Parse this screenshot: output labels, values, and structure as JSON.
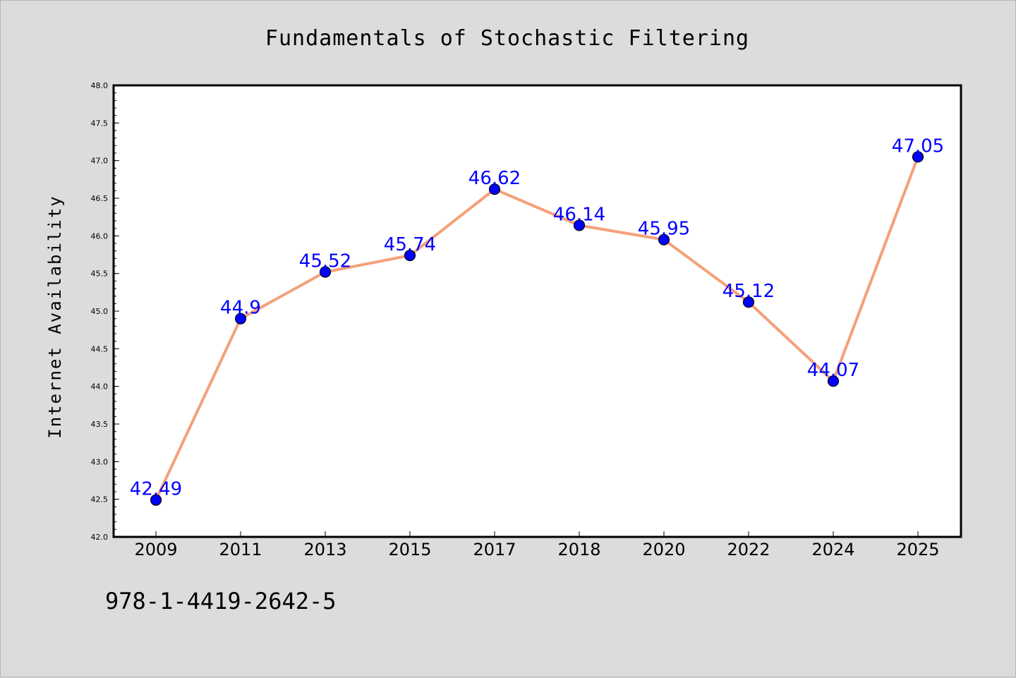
{
  "chart_data": {
    "type": "line",
    "title": "Fundamentals of Stochastic Filtering",
    "xlabel": "",
    "ylabel": "Internet Availability",
    "categories": [
      "2009",
      "2011",
      "2013",
      "2015",
      "2017",
      "2018",
      "2020",
      "2022",
      "2024",
      "2025"
    ],
    "series": [
      {
        "values": [
          42.49,
          44.9,
          45.52,
          45.74,
          46.62,
          46.14,
          45.95,
          45.12,
          44.07,
          47.05
        ],
        "labels": [
          "42.49",
          "44.9",
          "45.52",
          "45.74",
          "46.62",
          "46.14",
          "45.95",
          "45.12",
          "44.07",
          "47.05"
        ]
      }
    ],
    "ylim": [
      42.0,
      48.0
    ],
    "yticks": [
      "42.0",
      "42.5",
      "43.0",
      "43.5",
      "44.0",
      "44.5",
      "45.0",
      "45.5",
      "46.0",
      "46.5",
      "47.0",
      "47.5",
      "48.0"
    ],
    "grid": false,
    "legend": "none",
    "colors": {
      "line": "#f5a07a",
      "marker": "#0000ff",
      "label": "#0000ff",
      "background": "#dcdcdc",
      "plot_area": "#ffffff"
    }
  },
  "footer": {
    "isbn": "978-1-4419-2642-5"
  }
}
